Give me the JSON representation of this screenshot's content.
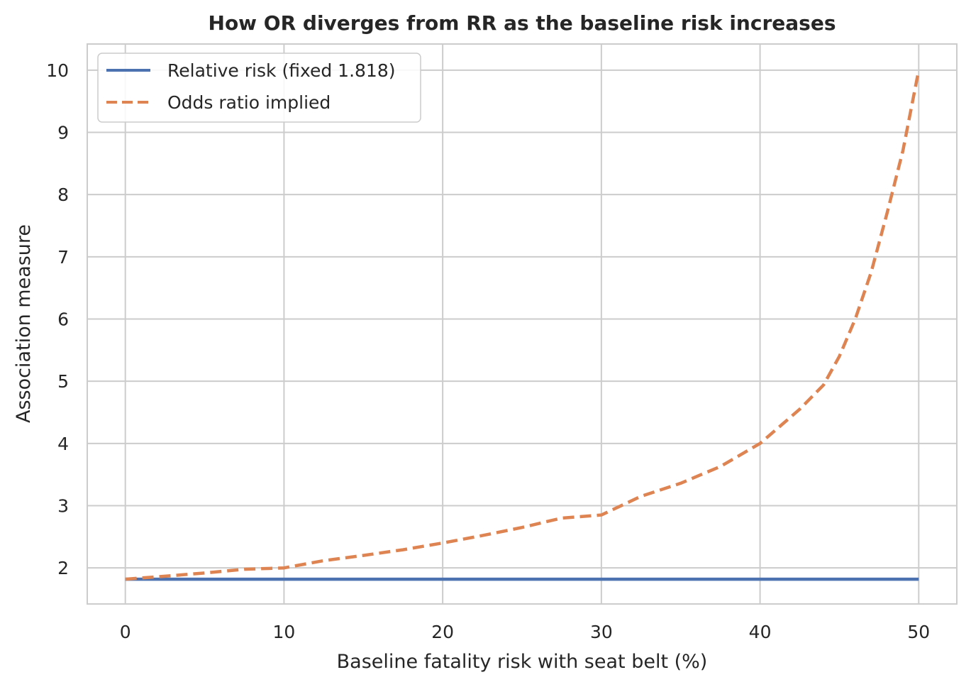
{
  "chart_data": {
    "type": "line",
    "title": "How OR diverges from RR as the baseline risk increases",
    "xlabel": "Baseline fatality risk with seat belt (%)",
    "ylabel": "Association measure",
    "xlim": [
      -2.4,
      52.4
    ],
    "ylim": [
      1.42,
      10.42
    ],
    "xticks": [
      0,
      10,
      20,
      30,
      40,
      50
    ],
    "yticks": [
      2,
      3,
      4,
      5,
      6,
      7,
      8,
      9,
      10
    ],
    "grid": true,
    "legend_position": "top-left",
    "relative_risk": 1.818,
    "x": [
      0,
      2.5,
      5,
      7.5,
      10,
      12.5,
      15,
      17.5,
      20,
      22.5,
      25,
      27.5,
      30,
      32.5,
      35,
      37.5,
      40,
      42.5,
      44,
      45,
      46,
      47,
      48,
      49,
      50
    ],
    "series": [
      {
        "name": "Relative risk (fixed 1.818)",
        "color": "#4c72b0",
        "style": "solid",
        "values": [
          1.818,
          1.818,
          1.818,
          1.818,
          1.818,
          1.818,
          1.818,
          1.818,
          1.818,
          1.818,
          1.818,
          1.818,
          1.818,
          1.818,
          1.818,
          1.818,
          1.818,
          1.818,
          1.818,
          1.818,
          1.818,
          1.818,
          1.818,
          1.818,
          1.818
        ]
      },
      {
        "name": "Odds ratio implied",
        "color": "#dd8452",
        "style": "dashed",
        "values": [
          1.818,
          1.866,
          1.919,
          1.978,
          2.0,
          2.116,
          2.2,
          2.292,
          2.4,
          2.52,
          2.65,
          2.8,
          2.85,
          3.15,
          3.36,
          3.63,
          4.0,
          4.55,
          4.94,
          5.4,
          6.0,
          6.75,
          7.7,
          8.7,
          10.0
        ]
      }
    ]
  }
}
